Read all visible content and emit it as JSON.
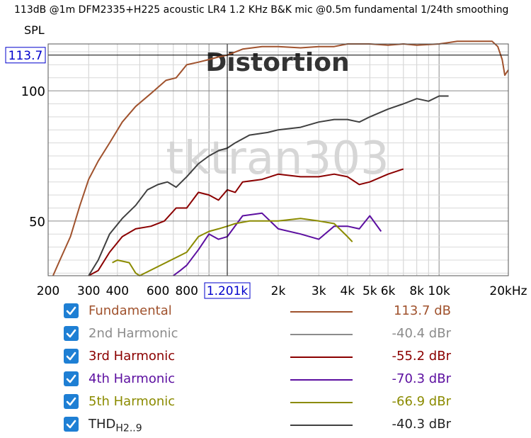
{
  "title": "113dB @1m DFM2335+H225 acoustic LR4 1.2 KHz B&K mic @0.5m fundamental 1/24th smoothing",
  "chart_data": {
    "type": "line",
    "title": "Distortion",
    "ylabel": "SPL",
    "watermark": "tktran303",
    "xscale": "log",
    "xlim": [
      200,
      20000
    ],
    "ylim": [
      29,
      118
    ],
    "xticks": [
      {
        "value": 200,
        "label": "200"
      },
      {
        "value": 300,
        "label": "300"
      },
      {
        "value": 400,
        "label": "400"
      },
      {
        "value": 600,
        "label": "600"
      },
      {
        "value": 800,
        "label": "800"
      },
      {
        "value": 2000,
        "label": "2k"
      },
      {
        "value": 3000,
        "label": "3k"
      },
      {
        "value": 4000,
        "label": "4k"
      },
      {
        "value": 5000,
        "label": "5k"
      },
      {
        "value": 6000,
        "label": "6k"
      },
      {
        "value": 8000,
        "label": "8k"
      },
      {
        "value": 10000,
        "label": "10k"
      },
      {
        "value": 20000,
        "label": "20kHz"
      }
    ],
    "yticks": [
      {
        "value": 50,
        "label": "50"
      },
      {
        "value": 100,
        "label": "100"
      }
    ],
    "cursor": {
      "x": 1201,
      "x_label": "1.201k",
      "y": 113.7,
      "y_label": "113.7"
    },
    "grid": true,
    "legend_position": "bottom",
    "series": [
      {
        "name": "Fundamental",
        "value_label": "113.7 dB",
        "color": "#a0522d",
        "enabled": true,
        "points": [
          [
            210,
            29
          ],
          [
            225,
            35
          ],
          [
            250,
            44
          ],
          [
            275,
            56
          ],
          [
            300,
            66
          ],
          [
            330,
            73
          ],
          [
            370,
            80
          ],
          [
            420,
            88
          ],
          [
            480,
            94
          ],
          [
            560,
            99
          ],
          [
            650,
            104
          ],
          [
            720,
            105
          ],
          [
            800,
            110
          ],
          [
            900,
            111
          ],
          [
            1000,
            112
          ],
          [
            1100,
            113
          ],
          [
            1201,
            113.7
          ],
          [
            1400,
            116
          ],
          [
            1700,
            117
          ],
          [
            2000,
            117
          ],
          [
            2500,
            116.5
          ],
          [
            3000,
            117
          ],
          [
            3500,
            117
          ],
          [
            4000,
            118
          ],
          [
            5000,
            118
          ],
          [
            6000,
            117.5
          ],
          [
            7000,
            118
          ],
          [
            8000,
            117.5
          ],
          [
            10000,
            118
          ],
          [
            12000,
            119
          ],
          [
            15000,
            119
          ],
          [
            17000,
            119
          ],
          [
            18000,
            117
          ],
          [
            18800,
            112
          ],
          [
            19300,
            106
          ],
          [
            20000,
            108
          ]
        ]
      },
      {
        "name": "2nd Harmonic",
        "value_label": "-40.4 dBr",
        "color": "#8c8c8c",
        "enabled": true,
        "points": []
      },
      {
        "name": "3rd Harmonic",
        "value_label": "-55.2 dBr",
        "color": "#8b0000",
        "enabled": true,
        "points": [
          [
            300,
            29
          ],
          [
            330,
            31
          ],
          [
            370,
            38
          ],
          [
            420,
            44
          ],
          [
            480,
            47
          ],
          [
            560,
            48
          ],
          [
            640,
            50
          ],
          [
            720,
            55
          ],
          [
            800,
            55
          ],
          [
            900,
            61
          ],
          [
            1000,
            60
          ],
          [
            1100,
            58
          ],
          [
            1201,
            62
          ],
          [
            1300,
            61
          ],
          [
            1400,
            65
          ],
          [
            1700,
            66
          ],
          [
            2000,
            68
          ],
          [
            2500,
            67
          ],
          [
            3000,
            67
          ],
          [
            3500,
            68
          ],
          [
            4000,
            67
          ],
          [
            4500,
            64
          ],
          [
            5000,
            65
          ],
          [
            6000,
            68
          ],
          [
            7000,
            70
          ]
        ]
      },
      {
        "name": "4th Harmonic",
        "value_label": "-70.3 dBr",
        "color": "#5c0fa0",
        "enabled": true,
        "points": [
          [
            700,
            29
          ],
          [
            750,
            31
          ],
          [
            800,
            33
          ],
          [
            900,
            39
          ],
          [
            1000,
            45
          ],
          [
            1100,
            43
          ],
          [
            1201,
            44
          ],
          [
            1400,
            52
          ],
          [
            1700,
            53
          ],
          [
            2000,
            47
          ],
          [
            2500,
            45
          ],
          [
            3000,
            43
          ],
          [
            3500,
            48
          ],
          [
            4000,
            48
          ],
          [
            4500,
            47
          ],
          [
            5000,
            52
          ],
          [
            5600,
            46
          ]
        ]
      },
      {
        "name": "5th Harmonic",
        "value_label": "-66.9 dBr",
        "color": "#8b8b00",
        "enabled": true,
        "points": [
          [
            380,
            34
          ],
          [
            400,
            35
          ],
          [
            450,
            34
          ],
          [
            480,
            30
          ],
          [
            500,
            29
          ],
          [
            800,
            38
          ],
          [
            900,
            44
          ],
          [
            1000,
            46
          ],
          [
            1100,
            47
          ],
          [
            1201,
            48
          ],
          [
            1300,
            49
          ],
          [
            1500,
            50
          ],
          [
            1800,
            50
          ],
          [
            2000,
            50
          ],
          [
            2500,
            51
          ],
          [
            3000,
            50
          ],
          [
            3500,
            49
          ],
          [
            4000,
            44
          ],
          [
            4200,
            42
          ]
        ]
      },
      {
        "name": "THD",
        "name_sub": "H2..9",
        "value_label": "-40.3 dBr",
        "color": "#404040",
        "enabled": true,
        "points": [
          [
            300,
            29
          ],
          [
            330,
            35
          ],
          [
            370,
            45
          ],
          [
            420,
            51
          ],
          [
            480,
            56
          ],
          [
            540,
            62
          ],
          [
            600,
            64
          ],
          [
            660,
            65
          ],
          [
            720,
            63
          ],
          [
            800,
            67
          ],
          [
            900,
            72
          ],
          [
            1000,
            75
          ],
          [
            1100,
            77
          ],
          [
            1201,
            78
          ],
          [
            1300,
            80
          ],
          [
            1500,
            83
          ],
          [
            1800,
            84
          ],
          [
            2000,
            85
          ],
          [
            2500,
            86
          ],
          [
            3000,
            88
          ],
          [
            3500,
            89
          ],
          [
            4000,
            89
          ],
          [
            4500,
            88
          ],
          [
            5000,
            90
          ],
          [
            6000,
            93
          ],
          [
            7000,
            95
          ],
          [
            8000,
            97
          ],
          [
            9000,
            96
          ],
          [
            10000,
            98
          ],
          [
            11000,
            98
          ]
        ]
      }
    ]
  }
}
